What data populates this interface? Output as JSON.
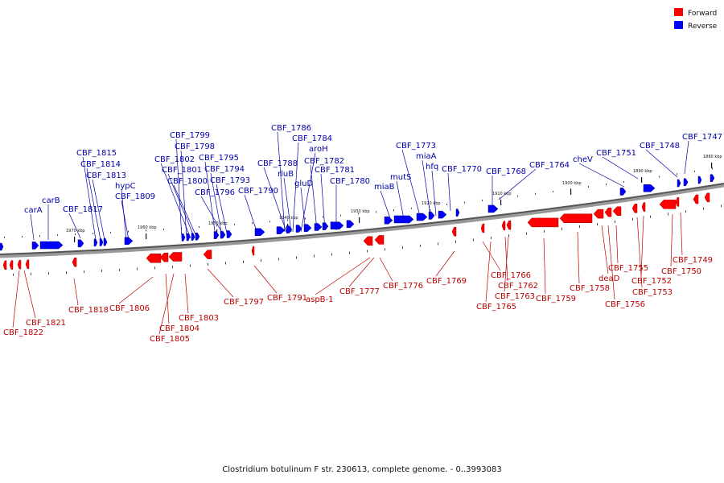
{
  "legend": {
    "forward": {
      "label": "Forward",
      "color": "#ff0000"
    },
    "reverse": {
      "label": "Reverse",
      "color": "#0000ff"
    }
  },
  "caption": "Clostridium botulinum F str. 230613, complete genome. - 0..3993083",
  "scale": {
    "unit": "kbp",
    "ticks": [
      "1880 kbp",
      "1890 kbp",
      "1900 kbp",
      "1910 kbp",
      "1920 kbp",
      "1930 kbp",
      "1940 kbp",
      "1950 kbp",
      "1960 kbp",
      "1970 kbp"
    ]
  },
  "genes": {
    "reverse_labels": [
      "carA",
      "carB",
      "CBF_1817",
      "CBF_1815",
      "CBF_1814",
      "CBF_1813",
      "hypC",
      "CBF_1809",
      "CBF_1799",
      "CBF_1798",
      "CBF_1802",
      "CBF_1801",
      "CBF_1800",
      "CBF_1795",
      "CBF_1794",
      "CBF_1793",
      "CBF_1796",
      "CBF_1790",
      "CBF_1786",
      "CBF_1784",
      "aroH",
      "CBF_1788",
      "rluB",
      "gluD",
      "CBF_1782",
      "CBF_1781",
      "CBF_1780",
      "CBF_1773",
      "miaA",
      "hfq",
      "mutS",
      "miaB",
      "CBF_1770",
      "CBF_1768",
      "CBF_1764",
      "cheV",
      "CBF_1751",
      "CBF_1748",
      "CBF_1747"
    ],
    "forward_labels": [
      "CBF_1822",
      "CBF_1821",
      "CBF_1818",
      "CBF_1806",
      "CBF_1804",
      "CBF_1805",
      "CBF_1803",
      "CBF_1797",
      "CBF_1791",
      "aspB-1",
      "CBF_1777",
      "CBF_1776",
      "CBF_1769",
      "CBF_1766",
      "CBF_1765",
      "CBF_1762",
      "CBF_1763",
      "CBF_1759",
      "CBF_1758",
      "deaD",
      "CBF_1756",
      "CBF_1755",
      "CBF_1753",
      "CBF_1752",
      "CBF_1750",
      "CBF_1749"
    ]
  }
}
